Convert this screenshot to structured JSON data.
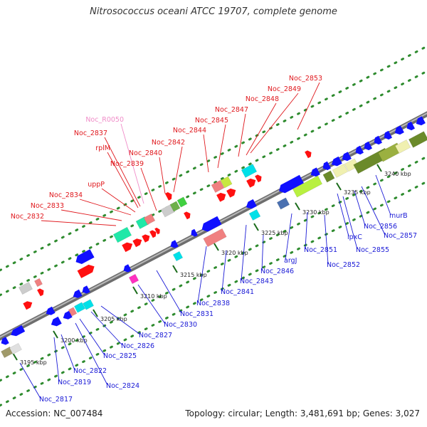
{
  "title": "Nitrosococcus oceani ATCC 19707, complete genome",
  "footer": {
    "accession": "Accession: NC_007484",
    "stats": "Topology: circular; Length: 3,481,691 bp; Genes: 3,027"
  },
  "colors": {
    "forward_label": "#e0191e",
    "reverse_label": "#1a1ad6",
    "rna_label": "#f08cc8",
    "backbone": "#8c8c8c",
    "tick_dots": "#2e8b2e"
  },
  "ticks": [
    "3195 kbp",
    "3200 kbp",
    "3205 kbp",
    "3210 kbp",
    "3215 kbp",
    "3220 kbp",
    "3225 kbp",
    "3230 kbp",
    "3235 kbp",
    "3240 kbp"
  ],
  "upper_labels": [
    {
      "text": "Noc_2853",
      "kind": "forward"
    },
    {
      "text": "Noc_2849",
      "kind": "forward"
    },
    {
      "text": "Noc_2848",
      "kind": "forward"
    },
    {
      "text": "Noc_2847",
      "kind": "forward"
    },
    {
      "text": "Noc_2845",
      "kind": "forward"
    },
    {
      "text": "Noc_2844",
      "kind": "forward"
    },
    {
      "text": "Noc_2842",
      "kind": "forward"
    },
    {
      "text": "Noc_2840",
      "kind": "forward"
    },
    {
      "text": "Noc_R0050",
      "kind": "rna"
    },
    {
      "text": "Noc_2837",
      "kind": "forward"
    },
    {
      "text": "rplM",
      "kind": "forward"
    },
    {
      "text": "Noc_2839",
      "kind": "forward"
    },
    {
      "text": "uppP",
      "kind": "forward"
    },
    {
      "text": "Noc_2834",
      "kind": "forward"
    },
    {
      "text": "Noc_2833",
      "kind": "forward"
    },
    {
      "text": "Noc_2832",
      "kind": "forward"
    }
  ],
  "lower_labels": [
    {
      "text": "murB"
    },
    {
      "text": "Noc_2857"
    },
    {
      "text": "Noc_2856"
    },
    {
      "text": "lpxC"
    },
    {
      "text": "Noc_2855"
    },
    {
      "text": "Noc_2851"
    },
    {
      "text": "Noc_2852"
    },
    {
      "text": "argJ"
    },
    {
      "text": "Noc_2846"
    },
    {
      "text": "Noc_2843"
    },
    {
      "text": "Noc_2841"
    },
    {
      "text": "Noc_2838"
    },
    {
      "text": "Noc_2831"
    },
    {
      "text": "Noc_2830"
    },
    {
      "text": "Noc_2827"
    },
    {
      "text": "Noc_2826"
    },
    {
      "text": "Noc_2825"
    },
    {
      "text": "Noc_2824"
    },
    {
      "text": "Noc_2822"
    },
    {
      "text": "Noc_2819"
    },
    {
      "text": "Noc_2817"
    }
  ]
}
